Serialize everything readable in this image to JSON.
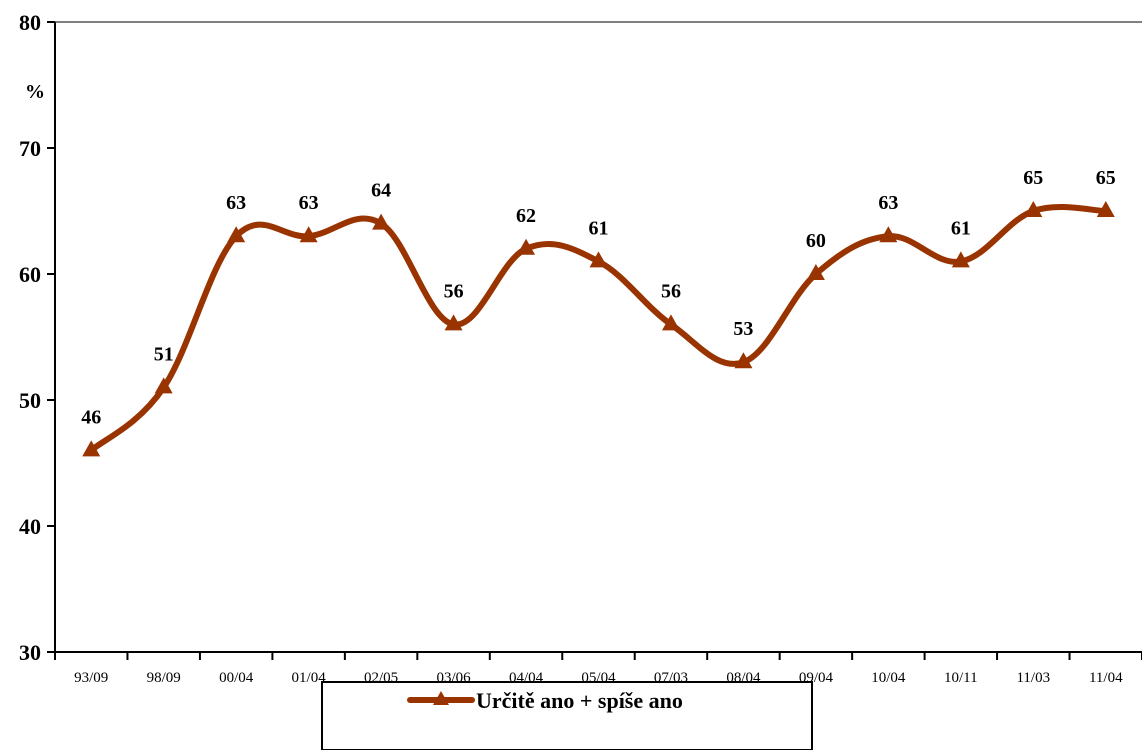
{
  "chart_data": {
    "type": "line",
    "title": "",
    "xlabel": "",
    "ylabel": "%",
    "ylim": [
      30,
      80
    ],
    "yticks": [
      30,
      40,
      50,
      60,
      70,
      80
    ],
    "grid": false,
    "legend_position": "bottom",
    "categories": [
      "93/09",
      "98/09",
      "00/04",
      "01/04",
      "02/05",
      "03/06",
      "04/04",
      "05/04",
      "07/03",
      "08/04",
      "09/04",
      "10/04",
      "10/11",
      "11/03",
      "11/04"
    ],
    "series": [
      {
        "name": "Určitě ano + spíše ano",
        "color": "#993300",
        "marker": "triangle",
        "values": [
          46,
          51,
          63,
          63,
          64,
          56,
          62,
          61,
          56,
          53,
          60,
          63,
          61,
          65,
          65
        ]
      }
    ]
  }
}
